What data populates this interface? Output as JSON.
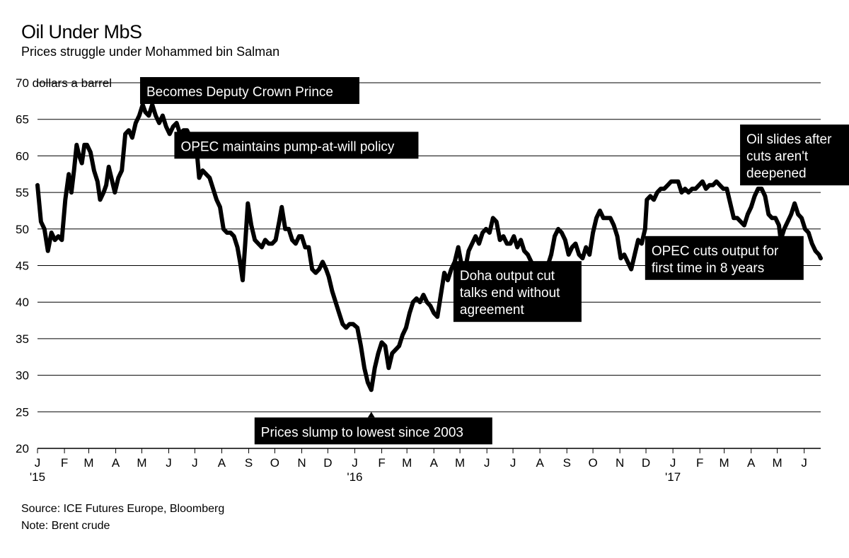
{
  "header": {
    "title": "Oil Under MbS",
    "subtitle": "Prices struggle under Mohammed bin Salman"
  },
  "footer": {
    "source": "Source: ICE Futures Europe, Bloomberg",
    "note": "Note: Brent crude"
  },
  "colors": {
    "line": "#000000",
    "grid": "#000000",
    "label_bg": "#000000",
    "label_text": "#ffffff"
  },
  "chart_data": {
    "type": "line",
    "title": "Oil Under MbS",
    "subtitle": "Prices struggle under Mohammed bin Salman",
    "ylabel": "dollars a barrel",
    "ylim": [
      20,
      70
    ],
    "yticks": [
      20,
      25,
      30,
      35,
      40,
      45,
      50,
      55,
      60,
      65,
      70
    ],
    "y_top_label": "70 dollars a barrel",
    "grid": "horizontal",
    "xrange": [
      "2015-01-01",
      "2017-06-20"
    ],
    "xticks": [
      {
        "label": "J",
        "year": "'15",
        "date": "2015-01-01"
      },
      {
        "label": "F",
        "date": "2015-02-01"
      },
      {
        "label": "M",
        "date": "2015-03-01"
      },
      {
        "label": "A",
        "date": "2015-04-01"
      },
      {
        "label": "M",
        "date": "2015-05-01"
      },
      {
        "label": "J",
        "date": "2015-06-01"
      },
      {
        "label": "J",
        "date": "2015-07-01"
      },
      {
        "label": "A",
        "date": "2015-08-01"
      },
      {
        "label": "S",
        "date": "2015-09-01"
      },
      {
        "label": "O",
        "date": "2015-10-01"
      },
      {
        "label": "N",
        "date": "2015-11-01"
      },
      {
        "label": "D",
        "date": "2015-12-01"
      },
      {
        "label": "J",
        "year": "'16",
        "date": "2016-01-01"
      },
      {
        "label": "F",
        "date": "2016-02-01"
      },
      {
        "label": "M",
        "date": "2016-03-01"
      },
      {
        "label": "A",
        "date": "2016-04-01"
      },
      {
        "label": "M",
        "date": "2016-05-01"
      },
      {
        "label": "J",
        "date": "2016-06-01"
      },
      {
        "label": "J",
        "date": "2016-07-01"
      },
      {
        "label": "A",
        "date": "2016-08-01"
      },
      {
        "label": "S",
        "date": "2016-09-01"
      },
      {
        "label": "O",
        "date": "2016-10-01"
      },
      {
        "label": "N",
        "date": "2016-11-01"
      },
      {
        "label": "D",
        "date": "2016-12-01"
      },
      {
        "label": "J",
        "year": "'17",
        "date": "2017-01-01"
      },
      {
        "label": "F",
        "date": "2017-02-01"
      },
      {
        "label": "M",
        "date": "2017-03-01"
      },
      {
        "label": "A",
        "date": "2017-04-01"
      },
      {
        "label": "M",
        "date": "2017-05-01"
      },
      {
        "label": "J",
        "date": "2017-06-01"
      }
    ],
    "series": [
      {
        "points": [
          [
            "2015-01-01",
            56
          ],
          [
            "2015-01-05",
            51
          ],
          [
            "2015-01-09",
            50
          ],
          [
            "2015-01-13",
            47
          ],
          [
            "2015-01-17",
            49.5
          ],
          [
            "2015-01-21",
            48.5
          ],
          [
            "2015-01-25",
            49
          ],
          [
            "2015-01-29",
            48.5
          ],
          [
            "2015-02-02",
            54
          ],
          [
            "2015-02-06",
            57.5
          ],
          [
            "2015-02-09",
            55
          ],
          [
            "2015-02-12",
            58
          ],
          [
            "2015-02-15",
            61.5
          ],
          [
            "2015-02-18",
            60
          ],
          [
            "2015-02-21",
            59
          ],
          [
            "2015-02-24",
            61.5
          ],
          [
            "2015-02-27",
            61.5
          ],
          [
            "2015-03-03",
            60.5
          ],
          [
            "2015-03-07",
            58
          ],
          [
            "2015-03-11",
            56.5
          ],
          [
            "2015-03-14",
            54
          ],
          [
            "2015-03-18",
            55
          ],
          [
            "2015-03-21",
            56
          ],
          [
            "2015-03-24",
            58.5
          ],
          [
            "2015-03-27",
            57
          ],
          [
            "2015-03-31",
            55
          ],
          [
            "2015-04-04",
            57
          ],
          [
            "2015-04-08",
            58
          ],
          [
            "2015-04-12",
            63
          ],
          [
            "2015-04-16",
            63.5
          ],
          [
            "2015-04-20",
            62.5
          ],
          [
            "2015-04-24",
            64.5
          ],
          [
            "2015-04-28",
            65.5
          ],
          [
            "2015-05-02",
            67
          ],
          [
            "2015-05-05",
            66
          ],
          [
            "2015-05-09",
            65.5
          ],
          [
            "2015-05-13",
            67
          ],
          [
            "2015-05-17",
            65.5
          ],
          [
            "2015-05-21",
            64.5
          ],
          [
            "2015-05-25",
            65.5
          ],
          [
            "2015-05-29",
            64
          ],
          [
            "2015-06-02",
            63
          ],
          [
            "2015-06-06",
            64
          ],
          [
            "2015-06-10",
            64.5
          ],
          [
            "2015-06-14",
            63
          ],
          [
            "2015-06-18",
            63.5
          ],
          [
            "2015-06-22",
            63.5
          ],
          [
            "2015-06-26",
            62.5
          ],
          [
            "2015-06-30",
            62
          ],
          [
            "2015-07-03",
            61
          ],
          [
            "2015-07-06",
            57
          ],
          [
            "2015-07-10",
            58
          ],
          [
            "2015-07-14",
            57.5
          ],
          [
            "2015-07-18",
            57
          ],
          [
            "2015-07-22",
            55.5
          ],
          [
            "2015-07-26",
            54
          ],
          [
            "2015-07-30",
            53
          ],
          [
            "2015-08-03",
            50
          ],
          [
            "2015-08-07",
            49.5
          ],
          [
            "2015-08-11",
            49.5
          ],
          [
            "2015-08-15",
            49
          ],
          [
            "2015-08-19",
            47.5
          ],
          [
            "2015-08-22",
            45.5
          ],
          [
            "2015-08-25",
            43
          ],
          [
            "2015-08-28",
            48
          ],
          [
            "2015-08-31",
            53.5
          ],
          [
            "2015-09-04",
            50.5
          ],
          [
            "2015-09-08",
            48.5
          ],
          [
            "2015-09-12",
            48
          ],
          [
            "2015-09-16",
            47.5
          ],
          [
            "2015-09-20",
            48.5
          ],
          [
            "2015-09-24",
            48
          ],
          [
            "2015-09-28",
            48
          ],
          [
            "2015-10-02",
            48.5
          ],
          [
            "2015-10-06",
            51
          ],
          [
            "2015-10-09",
            53
          ],
          [
            "2015-10-13",
            50
          ],
          [
            "2015-10-17",
            50
          ],
          [
            "2015-10-21",
            48.5
          ],
          [
            "2015-10-25",
            48
          ],
          [
            "2015-10-29",
            49
          ],
          [
            "2015-11-01",
            49
          ],
          [
            "2015-11-05",
            47.5
          ],
          [
            "2015-11-09",
            47.5
          ],
          [
            "2015-11-13",
            44.5
          ],
          [
            "2015-11-17",
            44
          ],
          [
            "2015-11-21",
            44.5
          ],
          [
            "2015-11-25",
            45.5
          ],
          [
            "2015-11-29",
            44.5
          ],
          [
            "2015-12-02",
            43.5
          ],
          [
            "2015-12-06",
            41.5
          ],
          [
            "2015-12-10",
            40
          ],
          [
            "2015-12-14",
            38.5
          ],
          [
            "2015-12-18",
            37
          ],
          [
            "2015-12-22",
            36.5
          ],
          [
            "2015-12-26",
            37
          ],
          [
            "2015-12-30",
            37
          ],
          [
            "2016-01-04",
            36.5
          ],
          [
            "2016-01-08",
            34
          ],
          [
            "2016-01-12",
            31
          ],
          [
            "2016-01-16",
            29
          ],
          [
            "2016-01-20",
            28
          ],
          [
            "2016-01-24",
            31
          ],
          [
            "2016-01-28",
            33
          ],
          [
            "2016-02-01",
            34.5
          ],
          [
            "2016-02-05",
            34
          ],
          [
            "2016-02-09",
            31
          ],
          [
            "2016-02-13",
            33
          ],
          [
            "2016-02-17",
            33.5
          ],
          [
            "2016-02-21",
            34
          ],
          [
            "2016-02-25",
            35.5
          ],
          [
            "2016-02-29",
            36.5
          ],
          [
            "2016-03-04",
            38.5
          ],
          [
            "2016-03-08",
            40
          ],
          [
            "2016-03-12",
            40.5
          ],
          [
            "2016-03-16",
            40
          ],
          [
            "2016-03-20",
            41
          ],
          [
            "2016-03-24",
            40
          ],
          [
            "2016-03-28",
            39.5
          ],
          [
            "2016-04-01",
            38.5
          ],
          [
            "2016-04-05",
            38
          ],
          [
            "2016-04-09",
            41
          ],
          [
            "2016-04-13",
            44
          ],
          [
            "2016-04-17",
            43
          ],
          [
            "2016-04-21",
            44.5
          ],
          [
            "2016-04-25",
            45.5
          ],
          [
            "2016-04-29",
            47.5
          ],
          [
            "2016-05-03",
            45
          ],
          [
            "2016-05-07",
            44.5
          ],
          [
            "2016-05-11",
            47
          ],
          [
            "2016-05-15",
            48
          ],
          [
            "2016-05-19",
            49
          ],
          [
            "2016-05-23",
            48
          ],
          [
            "2016-05-27",
            49.5
          ],
          [
            "2016-05-31",
            50
          ],
          [
            "2016-06-04",
            49.5
          ],
          [
            "2016-06-08",
            51.5
          ],
          [
            "2016-06-12",
            51
          ],
          [
            "2016-06-16",
            48.5
          ],
          [
            "2016-06-20",
            49
          ],
          [
            "2016-06-24",
            48
          ],
          [
            "2016-06-28",
            48
          ],
          [
            "2016-07-02",
            49
          ],
          [
            "2016-07-06",
            47.5
          ],
          [
            "2016-07-10",
            48.5
          ],
          [
            "2016-07-14",
            47
          ],
          [
            "2016-07-18",
            46.5
          ],
          [
            "2016-07-22",
            45.5
          ],
          [
            "2016-07-26",
            45
          ],
          [
            "2016-07-30",
            43.5
          ],
          [
            "2016-08-02",
            41.5
          ],
          [
            "2016-08-06",
            44
          ],
          [
            "2016-08-10",
            45
          ],
          [
            "2016-08-14",
            46.5
          ],
          [
            "2016-08-18",
            49
          ],
          [
            "2016-08-22",
            50
          ],
          [
            "2016-08-26",
            49.5
          ],
          [
            "2016-08-30",
            48.5
          ],
          [
            "2016-09-03",
            46.5
          ],
          [
            "2016-09-07",
            47.5
          ],
          [
            "2016-09-11",
            48
          ],
          [
            "2016-09-15",
            46.5
          ],
          [
            "2016-09-19",
            46
          ],
          [
            "2016-09-23",
            47.5
          ],
          [
            "2016-09-27",
            46.5
          ],
          [
            "2016-10-01",
            49.5
          ],
          [
            "2016-10-05",
            51.5
          ],
          [
            "2016-10-09",
            52.5
          ],
          [
            "2016-10-13",
            51.5
          ],
          [
            "2016-10-17",
            51.5
          ],
          [
            "2016-10-21",
            51.5
          ],
          [
            "2016-10-25",
            50.5
          ],
          [
            "2016-10-29",
            49
          ],
          [
            "2016-11-02",
            46
          ],
          [
            "2016-11-06",
            46.5
          ],
          [
            "2016-11-10",
            45.5
          ],
          [
            "2016-11-14",
            44.5
          ],
          [
            "2016-11-18",
            46.5
          ],
          [
            "2016-11-22",
            48.5
          ],
          [
            "2016-11-26",
            48
          ],
          [
            "2016-11-30",
            50
          ],
          [
            "2016-12-02",
            54
          ],
          [
            "2016-12-06",
            54.5
          ],
          [
            "2016-12-10",
            54
          ],
          [
            "2016-12-14",
            55
          ],
          [
            "2016-12-18",
            55.5
          ],
          [
            "2016-12-22",
            55.5
          ],
          [
            "2016-12-26",
            56
          ],
          [
            "2016-12-30",
            56.5
          ],
          [
            "2017-01-03",
            56.5
          ],
          [
            "2017-01-07",
            56.5
          ],
          [
            "2017-01-11",
            55
          ],
          [
            "2017-01-15",
            55.5
          ],
          [
            "2017-01-19",
            55
          ],
          [
            "2017-01-23",
            55.5
          ],
          [
            "2017-01-27",
            55.5
          ],
          [
            "2017-01-31",
            56
          ],
          [
            "2017-02-04",
            56.5
          ],
          [
            "2017-02-08",
            55.5
          ],
          [
            "2017-02-12",
            56
          ],
          [
            "2017-02-16",
            56
          ],
          [
            "2017-02-20",
            56.5
          ],
          [
            "2017-02-24",
            56
          ],
          [
            "2017-02-28",
            55.5
          ],
          [
            "2017-03-04",
            55.5
          ],
          [
            "2017-03-08",
            53.5
          ],
          [
            "2017-03-12",
            51.5
          ],
          [
            "2017-03-16",
            51.5
          ],
          [
            "2017-03-20",
            51
          ],
          [
            "2017-03-24",
            50.5
          ],
          [
            "2017-03-28",
            52
          ],
          [
            "2017-04-01",
            53
          ],
          [
            "2017-04-05",
            54.5
          ],
          [
            "2017-04-09",
            55.5
          ],
          [
            "2017-04-13",
            55.5
          ],
          [
            "2017-04-17",
            54.5
          ],
          [
            "2017-04-21",
            52
          ],
          [
            "2017-04-25",
            51.5
          ],
          [
            "2017-04-29",
            51.5
          ],
          [
            "2017-05-03",
            50.5
          ],
          [
            "2017-05-05",
            48.5
          ],
          [
            "2017-05-09",
            50
          ],
          [
            "2017-05-13",
            51
          ],
          [
            "2017-05-17",
            52
          ],
          [
            "2017-05-21",
            53.5
          ],
          [
            "2017-05-25",
            52
          ],
          [
            "2017-05-29",
            51.5
          ],
          [
            "2017-06-02",
            50
          ],
          [
            "2017-06-06",
            49.5
          ],
          [
            "2017-06-10",
            48
          ],
          [
            "2017-06-14",
            47
          ],
          [
            "2017-06-18",
            46.5
          ],
          [
            "2017-06-20",
            46
          ]
        ]
      }
    ],
    "annotations": [
      {
        "text": [
          "Becomes Deputy Crown Prince"
        ],
        "date": "2015-04-29",
        "value": 67
      },
      {
        "text": [
          "OPEC maintains pump-at-will policy"
        ],
        "date": "2015-06-05",
        "value": 63
      },
      {
        "text": [
          "Prices slump to lowest since 2003"
        ],
        "date": "2016-01-20",
        "value": 27.9
      },
      {
        "text": [
          "Doha output cut",
          "talks end without",
          "agreement"
        ],
        "date": "2016-04-17",
        "value": 43
      },
      {
        "text": [
          "OPEC cuts output for",
          "first time in 8 years"
        ],
        "date": "2016-11-30",
        "value": 50
      },
      {
        "text": [
          "Oil slides after",
          "cuts aren't",
          "deepened"
        ],
        "date": "2017-05-25",
        "value": 52
      }
    ]
  }
}
